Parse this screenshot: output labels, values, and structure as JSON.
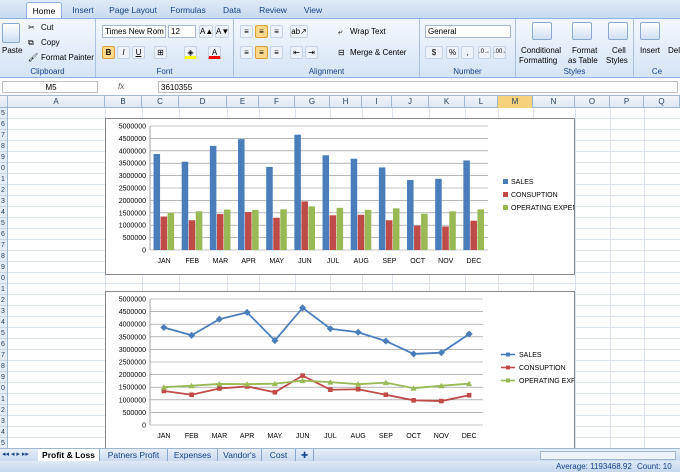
{
  "ribbon_tabs": [
    "Home",
    "Insert",
    "Page Layout",
    "Formulas",
    "Data",
    "Review",
    "View"
  ],
  "active_tab": "Home",
  "clipboard": {
    "paste": "Paste",
    "cut": "Cut",
    "copy": "Copy",
    "format_painter": "Format Painter",
    "group": "Clipboard"
  },
  "font": {
    "name": "Times New Rom",
    "size": "12",
    "group": "Font",
    "bold": "B",
    "italic": "I",
    "underline": "U"
  },
  "alignment": {
    "wrap": "Wrap Text",
    "merge": "Merge & Center",
    "group": "Alignment"
  },
  "number": {
    "format": "General",
    "group": "Number",
    "currency": "$",
    "percent": "%",
    "comma": ","
  },
  "styles": {
    "cond1": "Conditional",
    "cond2": "Formatting",
    "table1": "Format",
    "table2": "as Table",
    "cell1": "Cell",
    "cell2": "Styles",
    "group": "Styles"
  },
  "cells": {
    "insert": "Insert",
    "delete": "Dele",
    "group": "Ce"
  },
  "formula_bar": {
    "name_box": "M5",
    "fx": "fx",
    "value": "3610355"
  },
  "columns": [
    "A",
    "B",
    "C",
    "D",
    "E",
    "F",
    "G",
    "H",
    "I",
    "J",
    "K",
    "L",
    "M",
    "N",
    "O",
    "P",
    "Q"
  ],
  "selected_column": "M",
  "rows": [
    "5",
    "6",
    "7",
    "8",
    "9",
    "0",
    "1",
    "2",
    "3",
    "4",
    "5",
    "6",
    "7",
    "8",
    "9",
    "0",
    "1",
    "2",
    "3",
    "4",
    "5",
    "6",
    "7",
    "8",
    "9",
    "0",
    "1",
    "2",
    "3",
    "4",
    "5"
  ],
  "sheet_tabs": [
    "Profit & Loss",
    "Patners Profit",
    "Expenses",
    "Vandor's",
    "Cost"
  ],
  "active_sheet": "Profit & Loss",
  "status": {
    "average": "Average: 1193468.92",
    "count": "Count: 10"
  },
  "chart_data": [
    {
      "type": "bar",
      "categories": [
        "JAN",
        "FEB",
        "MAR",
        "APR",
        "MAY",
        "JUN",
        "JUL",
        "AUG",
        "SEP",
        "OCT",
        "NOV",
        "DEC"
      ],
      "y_ticks": [
        "0",
        "500000",
        "1000000",
        "1500000",
        "2000000",
        "2500000",
        "3000000",
        "3500000",
        "4000000",
        "4500000",
        "5000000"
      ],
      "ylim": [
        0,
        5000000
      ],
      "grid": true,
      "legend": "right",
      "series": [
        {
          "name": "SALES",
          "color": "#4a7ebb",
          "values": [
            3870000,
            3560000,
            4200000,
            4470000,
            3350000,
            4650000,
            3820000,
            3680000,
            3330000,
            2820000,
            2870000,
            3610355
          ]
        },
        {
          "name": "CONSUPTION",
          "color": "#be4b48",
          "values": [
            1350000,
            1200000,
            1450000,
            1530000,
            1300000,
            1960000,
            1400000,
            1420000,
            1200000,
            980000,
            950000,
            1180000
          ]
        },
        {
          "name": "OPERATING EXPENSE",
          "color": "#98b954",
          "values": [
            1500000,
            1560000,
            1630000,
            1620000,
            1640000,
            1760000,
            1700000,
            1620000,
            1680000,
            1460000,
            1560000,
            1640000
          ]
        }
      ]
    },
    {
      "type": "line",
      "categories": [
        "JAN",
        "FEB",
        "MAR",
        "APR",
        "MAY",
        "JUN",
        "JUL",
        "AUG",
        "SEP",
        "OCT",
        "NOV",
        "DEC"
      ],
      "y_ticks": [
        "0",
        "500000",
        "1000000",
        "1500000",
        "2000000",
        "2500000",
        "3000000",
        "3500000",
        "4000000",
        "4500000",
        "5000000"
      ],
      "ylim": [
        0,
        5000000
      ],
      "grid": true,
      "legend": "right",
      "series": [
        {
          "name": "SALES",
          "color": "#4a7ebb",
          "values": [
            3870000,
            3560000,
            4200000,
            4470000,
            3350000,
            4650000,
            3820000,
            3680000,
            3330000,
            2820000,
            2870000,
            3610355
          ]
        },
        {
          "name": "CONSUPTION",
          "color": "#be4b48",
          "values": [
            1350000,
            1200000,
            1450000,
            1530000,
            1300000,
            1960000,
            1400000,
            1420000,
            1200000,
            980000,
            950000,
            1180000
          ]
        },
        {
          "name": "OPERATING EXPENSE",
          "color": "#98b954",
          "values": [
            1500000,
            1560000,
            1630000,
            1620000,
            1640000,
            1760000,
            1700000,
            1620000,
            1680000,
            1460000,
            1560000,
            1640000
          ]
        }
      ]
    }
  ]
}
